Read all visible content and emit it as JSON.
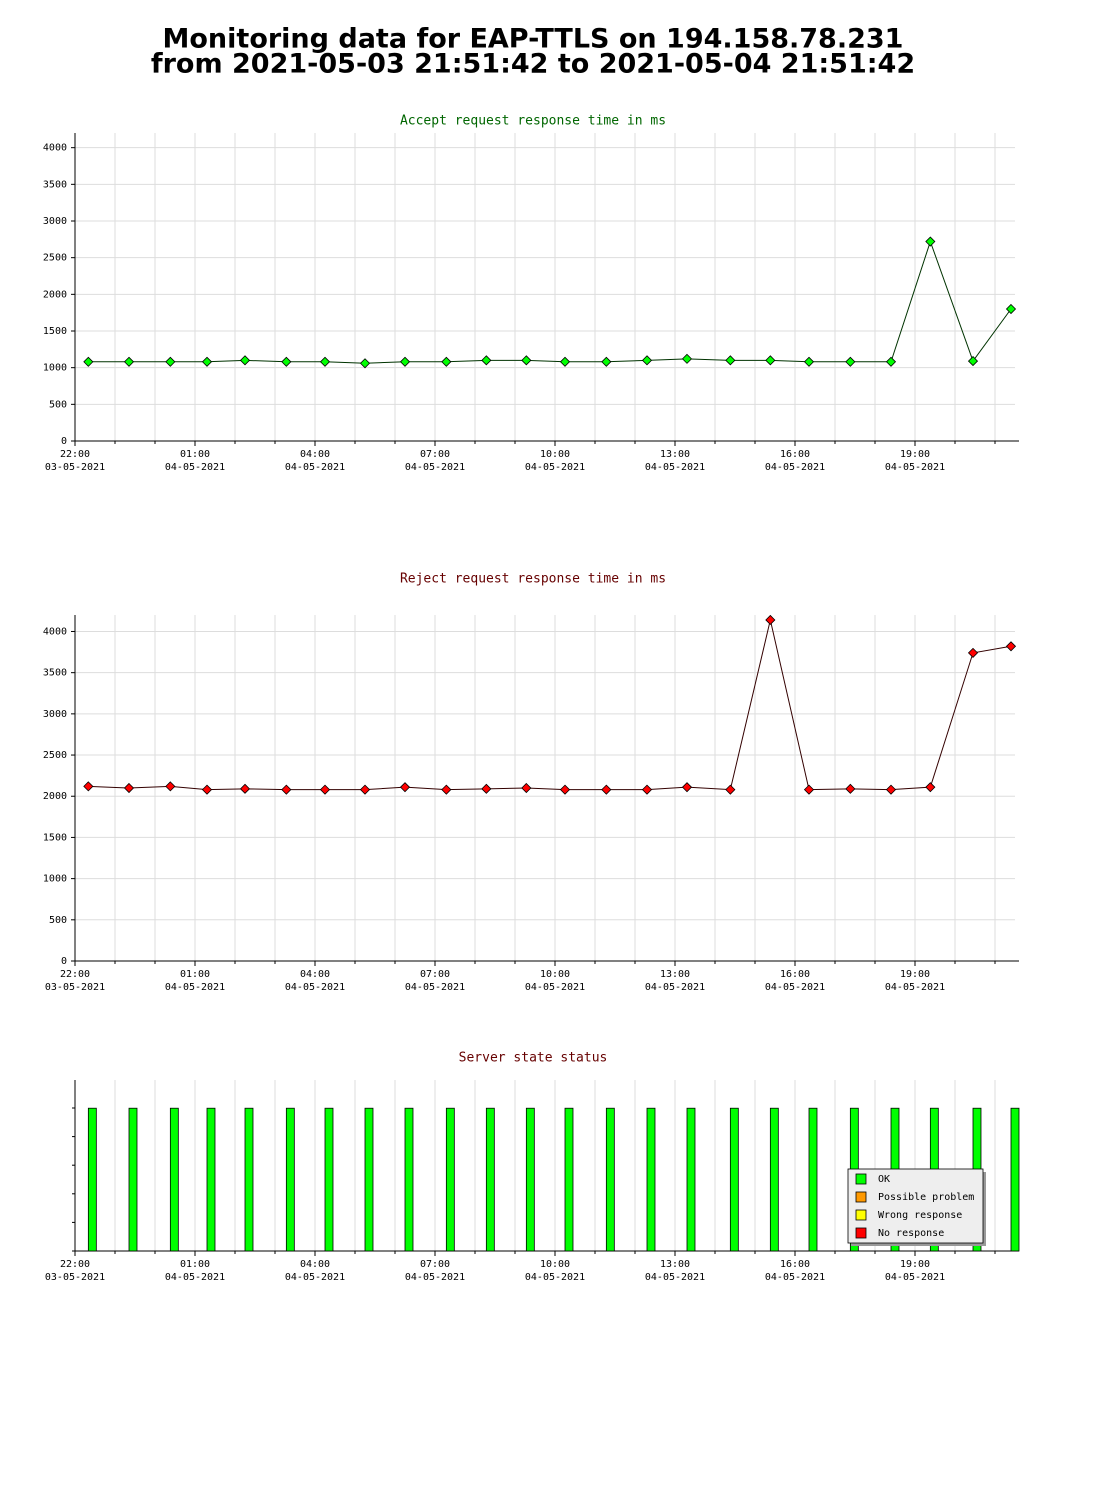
{
  "title": "Monitoring data for EAP-TTLS on 194.158.78.231",
  "subtitle": "from 2021-05-03 21:51:42 to 2021-05-04 21:51:42",
  "chart_data": [
    {
      "type": "line",
      "title": "Accept request response time in ms",
      "title_color": "#006600",
      "color": "#00ff00",
      "line_color": "#003300",
      "x": [
        "2021-05-03 22:20",
        "2021-05-03 23:21",
        "2021-05-04 00:23",
        "2021-05-04 01:18",
        "2021-05-04 02:15",
        "2021-05-04 03:17",
        "2021-05-04 04:15",
        "2021-05-04 05:15",
        "2021-05-04 06:15",
        "2021-05-04 07:17",
        "2021-05-04 08:17",
        "2021-05-04 09:17",
        "2021-05-04 10:15",
        "2021-05-04 11:17",
        "2021-05-04 12:18",
        "2021-05-04 13:18",
        "2021-05-04 14:23",
        "2021-05-04 15:23",
        "2021-05-04 16:21",
        "2021-05-04 17:23",
        "2021-05-04 18:24",
        "2021-05-04 19:23",
        "2021-05-04 20:27",
        "2021-05-04 21:24"
      ],
      "values": [
        1080,
        1080,
        1080,
        1080,
        1100,
        1080,
        1080,
        1060,
        1080,
        1080,
        1100,
        1100,
        1080,
        1080,
        1100,
        1120,
        1100,
        1100,
        1080,
        1080,
        1080,
        2720,
        1090,
        1800
      ],
      "xlim": [
        "2021-05-03 22:00",
        "2021-05-04 21:30"
      ],
      "xticks": [
        {
          "value": "2021-05-03 22:00",
          "label": "22:00",
          "date": "03-05-2021"
        },
        {
          "value": "2021-05-04 01:00",
          "label": "01:00",
          "date": "04-05-2021"
        },
        {
          "value": "2021-05-04 04:00",
          "label": "04:00",
          "date": "04-05-2021"
        },
        {
          "value": "2021-05-04 07:00",
          "label": "07:00",
          "date": "04-05-2021"
        },
        {
          "value": "2021-05-04 10:00",
          "label": "10:00",
          "date": "04-05-2021"
        },
        {
          "value": "2021-05-04 13:00",
          "label": "13:00",
          "date": "04-05-2021"
        },
        {
          "value": "2021-05-04 16:00",
          "label": "16:00",
          "date": "04-05-2021"
        },
        {
          "value": "2021-05-04 19:00",
          "label": "19:00",
          "date": "04-05-2021"
        }
      ],
      "ylim": [
        0,
        4200
      ],
      "yticks": [
        0,
        500,
        1000,
        1500,
        2000,
        2500,
        3000,
        3500,
        4000
      ],
      "grid": true,
      "grid_step_minutes": 60
    },
    {
      "type": "line",
      "title": "Reject request response time in ms",
      "title_color": "#660000",
      "color": "#ff0000",
      "line_color": "#330000",
      "x": [
        "2021-05-03 22:20",
        "2021-05-03 23:21",
        "2021-05-04 00:23",
        "2021-05-04 01:18",
        "2021-05-04 02:15",
        "2021-05-04 03:17",
        "2021-05-04 04:15",
        "2021-05-04 05:15",
        "2021-05-04 06:15",
        "2021-05-04 07:17",
        "2021-05-04 08:17",
        "2021-05-04 09:17",
        "2021-05-04 10:15",
        "2021-05-04 11:17",
        "2021-05-04 12:18",
        "2021-05-04 13:18",
        "2021-05-04 14:23",
        "2021-05-04 15:23",
        "2021-05-04 16:21",
        "2021-05-04 17:23",
        "2021-05-04 18:24",
        "2021-05-04 19:23",
        "2021-05-04 20:27",
        "2021-05-04 21:24"
      ],
      "values": [
        2120,
        2100,
        2120,
        2080,
        2090,
        2080,
        2080,
        2080,
        2110,
        2080,
        2090,
        2100,
        2080,
        2080,
        2080,
        2110,
        2080,
        4140,
        2080,
        2090,
        2080,
        2110,
        3740,
        3820
      ],
      "xlim": [
        "2021-05-03 22:00",
        "2021-05-04 21:30"
      ],
      "xticks": [
        {
          "value": "2021-05-03 22:00",
          "label": "22:00",
          "date": "03-05-2021"
        },
        {
          "value": "2021-05-04 01:00",
          "label": "01:00",
          "date": "04-05-2021"
        },
        {
          "value": "2021-05-04 04:00",
          "label": "04:00",
          "date": "04-05-2021"
        },
        {
          "value": "2021-05-04 07:00",
          "label": "07:00",
          "date": "04-05-2021"
        },
        {
          "value": "2021-05-04 10:00",
          "label": "10:00",
          "date": "04-05-2021"
        },
        {
          "value": "2021-05-04 13:00",
          "label": "13:00",
          "date": "04-05-2021"
        },
        {
          "value": "2021-05-04 16:00",
          "label": "16:00",
          "date": "04-05-2021"
        },
        {
          "value": "2021-05-04 19:00",
          "label": "19:00",
          "date": "04-05-2021"
        }
      ],
      "ylim": [
        0,
        4200
      ],
      "yticks": [
        0,
        500,
        1000,
        1500,
        2000,
        2500,
        3000,
        3500,
        4000
      ],
      "grid": true,
      "grid_step_minutes": 60
    },
    {
      "type": "status",
      "title": "Server state status",
      "title_color": "#660000",
      "x": [
        "2021-05-03 22:20",
        "2021-05-03 23:21",
        "2021-05-04 00:23",
        "2021-05-04 01:18",
        "2021-05-04 02:15",
        "2021-05-04 03:17",
        "2021-05-04 04:15",
        "2021-05-04 05:15",
        "2021-05-04 06:15",
        "2021-05-04 07:17",
        "2021-05-04 08:17",
        "2021-05-04 09:17",
        "2021-05-04 10:15",
        "2021-05-04 11:17",
        "2021-05-04 12:18",
        "2021-05-04 13:18",
        "2021-05-04 14:23",
        "2021-05-04 15:23",
        "2021-05-04 16:21",
        "2021-05-04 17:23",
        "2021-05-04 18:24",
        "2021-05-04 19:23",
        "2021-05-04 20:27",
        "2021-05-04 21:24"
      ],
      "states": [
        "OK",
        "OK",
        "OK",
        "OK",
        "OK",
        "OK",
        "OK",
        "OK",
        "OK",
        "OK",
        "OK",
        "OK",
        "OK",
        "OK",
        "OK",
        "OK",
        "OK",
        "OK",
        "OK",
        "OK",
        "OK",
        "OK",
        "OK",
        "OK"
      ],
      "xlim": [
        "2021-05-03 22:00",
        "2021-05-04 21:30"
      ],
      "xticks": [
        {
          "value": "2021-05-03 22:00",
          "label": "22:00",
          "date": "03-05-2021"
        },
        {
          "value": "2021-05-04 01:00",
          "label": "01:00",
          "date": "04-05-2021"
        },
        {
          "value": "2021-05-04 04:00",
          "label": "04:00",
          "date": "04-05-2021"
        },
        {
          "value": "2021-05-04 07:00",
          "label": "07:00",
          "date": "04-05-2021"
        },
        {
          "value": "2021-05-04 10:00",
          "label": "10:00",
          "date": "04-05-2021"
        },
        {
          "value": "2021-05-04 13:00",
          "label": "13:00",
          "date": "04-05-2021"
        },
        {
          "value": "2021-05-04 16:00",
          "label": "16:00",
          "date": "04-05-2021"
        },
        {
          "value": "2021-05-04 19:00",
          "label": "19:00",
          "date": "04-05-2021"
        }
      ],
      "legend": [
        {
          "name": "OK",
          "color": "#00ff00"
        },
        {
          "name": "Possible problem",
          "color": "#ff9900"
        },
        {
          "name": "Wrong response",
          "color": "#ffff00"
        },
        {
          "name": "No response",
          "color": "#ff0000"
        }
      ],
      "legend_position": "lower right",
      "grid": true,
      "grid_step_minutes": 60
    }
  ]
}
